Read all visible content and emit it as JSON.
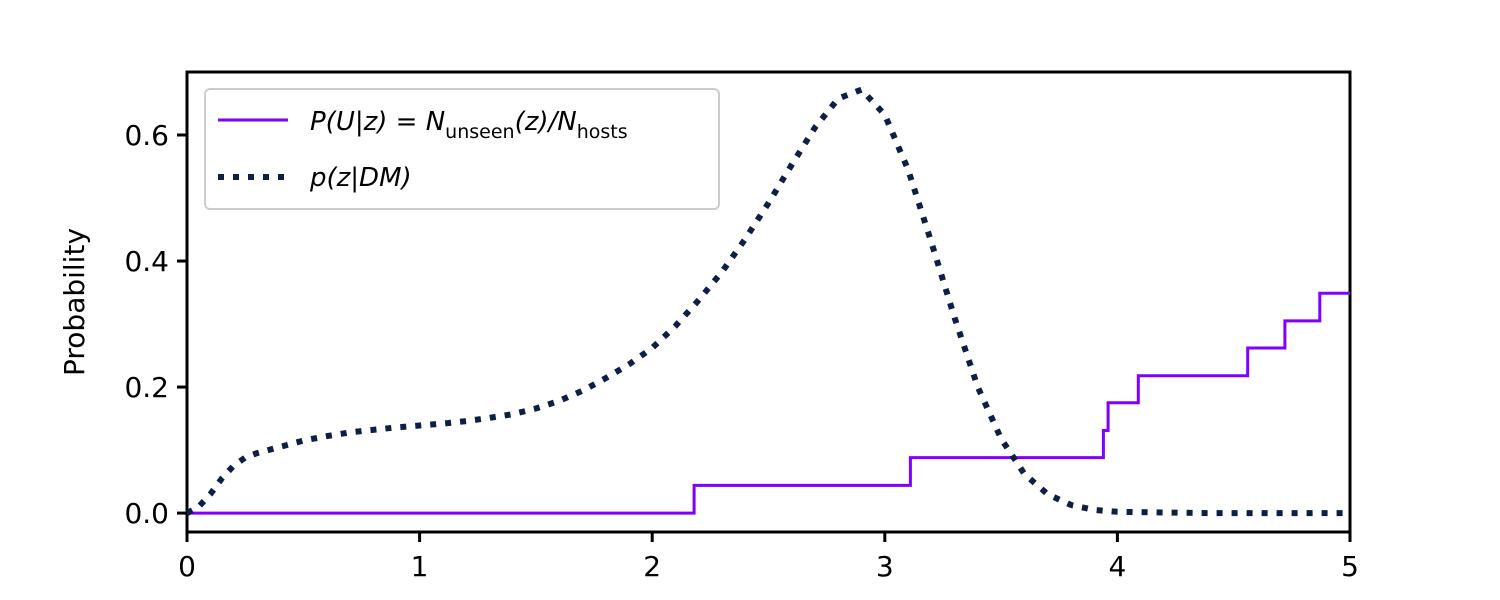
{
  "chart_data": {
    "type": "line",
    "ylabel": "Probability",
    "xlim": [
      0,
      5
    ],
    "ylim": [
      -0.03,
      0.7
    ],
    "xticks": [
      0,
      1,
      2,
      3,
      4,
      5
    ],
    "yticks": [
      0.0,
      0.2,
      0.4,
      0.6
    ],
    "xtick_labels": [
      "0",
      "1",
      "2",
      "3",
      "4",
      "5"
    ],
    "ytick_labels": [
      "0.0",
      "0.2",
      "0.4",
      "0.6"
    ],
    "grid": false,
    "legend": "upper-left",
    "series": [
      {
        "name": "P(U|z) = N_unseen(z)/N_hosts",
        "style": "step",
        "color": "#7f00ff",
        "x": [
          0,
          2.18,
          2.18,
          3.11,
          3.11,
          3.94,
          3.94,
          3.96,
          3.96,
          4.09,
          4.09,
          4.56,
          4.56,
          4.72,
          4.72,
          4.87,
          4.87,
          5.0
        ],
        "y": [
          0,
          0,
          0.044,
          0.044,
          0.088,
          0.088,
          0.131,
          0.131,
          0.175,
          0.175,
          0.218,
          0.218,
          0.262,
          0.262,
          0.305,
          0.305,
          0.349,
          0.349
        ]
      },
      {
        "name": "p(z|DM)",
        "style": "dotted",
        "color": "#0d1f44",
        "x": [
          0,
          0.05,
          0.1,
          0.15,
          0.2,
          0.25,
          0.3,
          0.4,
          0.5,
          0.6,
          0.7,
          0.8,
          0.9,
          1.0,
          1.1,
          1.2,
          1.3,
          1.4,
          1.5,
          1.6,
          1.7,
          1.8,
          1.9,
          2.0,
          2.1,
          2.2,
          2.3,
          2.4,
          2.5,
          2.6,
          2.7,
          2.8,
          2.9,
          3.0,
          3.1,
          3.2,
          3.3,
          3.4,
          3.5,
          3.6,
          3.7,
          3.8,
          3.9,
          4.0,
          4.2,
          4.4,
          4.6,
          4.8,
          5.0
        ],
        "y": [
          0,
          0.01,
          0.03,
          0.055,
          0.075,
          0.088,
          0.095,
          0.105,
          0.115,
          0.122,
          0.128,
          0.132,
          0.136,
          0.139,
          0.142,
          0.146,
          0.151,
          0.157,
          0.166,
          0.178,
          0.194,
          0.214,
          0.236,
          0.262,
          0.297,
          0.338,
          0.383,
          0.435,
          0.492,
          0.553,
          0.612,
          0.658,
          0.672,
          0.632,
          0.545,
          0.43,
          0.31,
          0.2,
          0.118,
          0.062,
          0.03,
          0.013,
          0.005,
          0.002,
          0.001,
          0.0,
          0.0,
          0.0,
          0.0
        ]
      }
    ]
  }
}
